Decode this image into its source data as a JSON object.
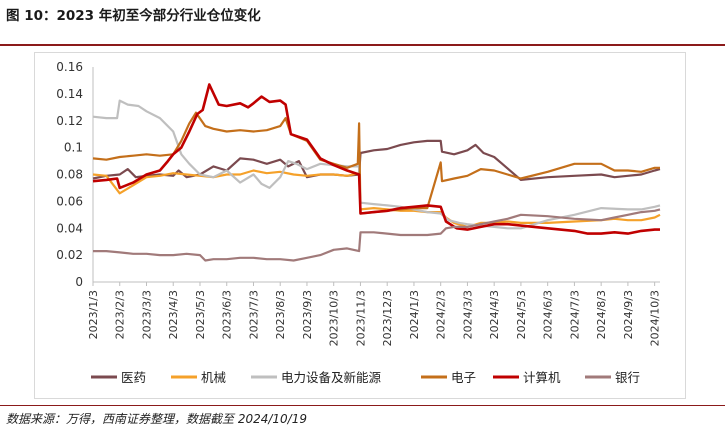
{
  "header": {
    "title": "图 10：2023 年初至今部分行业仓位变化"
  },
  "footer": {
    "source": "数据来源：万得，西南证券整理，数据截至 2024/10/19"
  },
  "chart_data": {
    "type": "line",
    "x": [
      "2023/1/3",
      "2023/2/3",
      "2023/3/3",
      "2023/4/3",
      "2023/5/3",
      "2023/6/3",
      "2023/7/3",
      "2023/8/3",
      "2023/9/3",
      "2023/10/3",
      "2023/11/3",
      "2023/12/3",
      "2024/1/3",
      "2024/2/3",
      "2024/3/3",
      "2024/4/3",
      "2024/5/3",
      "2024/6/3",
      "2024/7/3",
      "2024/8/3",
      "2024/9/3",
      "2024/10/3"
    ],
    "ylim": [
      0,
      0.16
    ],
    "yticks": [
      0,
      0.02,
      0.04,
      0.06,
      0.08,
      0.1,
      0.12,
      0.14,
      0.16
    ],
    "legend_position": "bottom",
    "grid": false,
    "series": [
      {
        "name": "医药",
        "color": "#7b4a4f",
        "points": [
          [
            0,
            0.077
          ],
          [
            0.5,
            0.079
          ],
          [
            1,
            0.08
          ],
          [
            1.3,
            0.084
          ],
          [
            1.6,
            0.078
          ],
          [
            2,
            0.079
          ],
          [
            2.5,
            0.08
          ],
          [
            3,
            0.079
          ],
          [
            3.2,
            0.083
          ],
          [
            3.5,
            0.078
          ],
          [
            4,
            0.08
          ],
          [
            4.5,
            0.086
          ],
          [
            5,
            0.083
          ],
          [
            5.5,
            0.092
          ],
          [
            6,
            0.091
          ],
          [
            6.5,
            0.088
          ],
          [
            7,
            0.091
          ],
          [
            7.3,
            0.086
          ],
          [
            7.7,
            0.09
          ],
          [
            8,
            0.078
          ],
          [
            8.5,
            0.08
          ],
          [
            9,
            0.08
          ],
          [
            9.5,
            0.079
          ],
          [
            9.95,
            0.08
          ],
          [
            10,
            0.096
          ],
          [
            10.5,
            0.098
          ],
          [
            11,
            0.099
          ],
          [
            11.5,
            0.102
          ],
          [
            12,
            0.104
          ],
          [
            12.5,
            0.105
          ],
          [
            13,
            0.105
          ],
          [
            13.05,
            0.097
          ],
          [
            13.5,
            0.095
          ],
          [
            14,
            0.098
          ],
          [
            14.3,
            0.102
          ],
          [
            14.6,
            0.096
          ],
          [
            15,
            0.093
          ],
          [
            15.3,
            0.088
          ],
          [
            16,
            0.076
          ],
          [
            17,
            0.078
          ],
          [
            18,
            0.079
          ],
          [
            19,
            0.08
          ],
          [
            19.5,
            0.078
          ],
          [
            20,
            0.079
          ],
          [
            20.5,
            0.08
          ],
          [
            21,
            0.083
          ],
          [
            21.2,
            0.084
          ]
        ]
      },
      {
        "name": "机械",
        "color": "#f5a12a",
        "points": [
          [
            0,
            0.08
          ],
          [
            0.5,
            0.079
          ],
          [
            1,
            0.066
          ],
          [
            1.5,
            0.072
          ],
          [
            2,
            0.078
          ],
          [
            2.5,
            0.079
          ],
          [
            3,
            0.081
          ],
          [
            3.5,
            0.08
          ],
          [
            4,
            0.079
          ],
          [
            4.5,
            0.078
          ],
          [
            5,
            0.08
          ],
          [
            5.5,
            0.08
          ],
          [
            6,
            0.083
          ],
          [
            6.5,
            0.081
          ],
          [
            7,
            0.082
          ],
          [
            7.5,
            0.08
          ],
          [
            8,
            0.079
          ],
          [
            8.5,
            0.08
          ],
          [
            9,
            0.08
          ],
          [
            9.5,
            0.079
          ],
          [
            9.95,
            0.081
          ],
          [
            10,
            0.054
          ],
          [
            10.5,
            0.055
          ],
          [
            11,
            0.054
          ],
          [
            11.5,
            0.053
          ],
          [
            12,
            0.053
          ],
          [
            12.5,
            0.052
          ],
          [
            13,
            0.052
          ],
          [
            13.2,
            0.048
          ],
          [
            13.5,
            0.044
          ],
          [
            14,
            0.041
          ],
          [
            14.5,
            0.044
          ],
          [
            15,
            0.044
          ],
          [
            15.5,
            0.045
          ],
          [
            16,
            0.044
          ],
          [
            17,
            0.044
          ],
          [
            18,
            0.045
          ],
          [
            19,
            0.046
          ],
          [
            19.5,
            0.047
          ],
          [
            20,
            0.046
          ],
          [
            20.5,
            0.046
          ],
          [
            21,
            0.048
          ],
          [
            21.2,
            0.05
          ]
        ]
      },
      {
        "name": "电力设备及新能源",
        "color": "#bfbfbf",
        "points": [
          [
            0,
            0.123
          ],
          [
            0.5,
            0.122
          ],
          [
            0.9,
            0.122
          ],
          [
            1,
            0.135
          ],
          [
            1.3,
            0.132
          ],
          [
            1.7,
            0.131
          ],
          [
            2,
            0.127
          ],
          [
            2.5,
            0.122
          ],
          [
            3,
            0.112
          ],
          [
            3.3,
            0.095
          ],
          [
            3.6,
            0.088
          ],
          [
            4,
            0.08
          ],
          [
            4.5,
            0.078
          ],
          [
            5,
            0.083
          ],
          [
            5.5,
            0.074
          ],
          [
            6,
            0.08
          ],
          [
            6.3,
            0.073
          ],
          [
            6.6,
            0.07
          ],
          [
            7,
            0.078
          ],
          [
            7.3,
            0.09
          ],
          [
            7.6,
            0.088
          ],
          [
            8,
            0.084
          ],
          [
            8.5,
            0.088
          ],
          [
            9,
            0.087
          ],
          [
            9.5,
            0.086
          ],
          [
            9.95,
            0.086
          ],
          [
            10,
            0.059
          ],
          [
            10.5,
            0.058
          ],
          [
            11,
            0.057
          ],
          [
            11.5,
            0.056
          ],
          [
            12,
            0.054
          ],
          [
            12.5,
            0.052
          ],
          [
            13,
            0.051
          ],
          [
            13.3,
            0.046
          ],
          [
            13.7,
            0.044
          ],
          [
            14,
            0.043
          ],
          [
            14.5,
            0.042
          ],
          [
            15,
            0.041
          ],
          [
            15.5,
            0.04
          ],
          [
            16,
            0.04
          ],
          [
            17,
            0.046
          ],
          [
            18,
            0.05
          ],
          [
            19,
            0.055
          ],
          [
            20,
            0.054
          ],
          [
            20.5,
            0.054
          ],
          [
            21,
            0.056
          ],
          [
            21.2,
            0.057
          ]
        ]
      },
      {
        "name": "电子",
        "color": "#c46f1a",
        "points": [
          [
            0,
            0.092
          ],
          [
            0.5,
            0.091
          ],
          [
            1,
            0.093
          ],
          [
            1.5,
            0.094
          ],
          [
            2,
            0.095
          ],
          [
            2.5,
            0.094
          ],
          [
            3,
            0.095
          ],
          [
            3.3,
            0.105
          ],
          [
            3.6,
            0.118
          ],
          [
            3.85,
            0.126
          ],
          [
            4.2,
            0.116
          ],
          [
            4.5,
            0.114
          ],
          [
            5,
            0.112
          ],
          [
            5.5,
            0.113
          ],
          [
            6,
            0.112
          ],
          [
            6.5,
            0.113
          ],
          [
            7,
            0.116
          ],
          [
            7.2,
            0.122
          ],
          [
            7.4,
            0.11
          ],
          [
            8,
            0.105
          ],
          [
            8.5,
            0.091
          ],
          [
            9,
            0.088
          ],
          [
            9.5,
            0.085
          ],
          [
            9.9,
            0.088
          ],
          [
            9.95,
            0.118
          ],
          [
            10,
            0.051
          ],
          [
            10.5,
            0.052
          ],
          [
            11,
            0.053
          ],
          [
            11.5,
            0.054
          ],
          [
            12,
            0.055
          ],
          [
            12.5,
            0.055
          ],
          [
            13,
            0.089
          ],
          [
            13.05,
            0.075
          ],
          [
            13.5,
            0.077
          ],
          [
            14,
            0.079
          ],
          [
            14.5,
            0.084
          ],
          [
            15,
            0.083
          ],
          [
            15.5,
            0.08
          ],
          [
            16,
            0.077
          ],
          [
            17,
            0.082
          ],
          [
            18,
            0.088
          ],
          [
            19,
            0.088
          ],
          [
            19.5,
            0.083
          ],
          [
            20,
            0.083
          ],
          [
            20.5,
            0.082
          ],
          [
            21,
            0.085
          ],
          [
            21.2,
            0.085
          ]
        ]
      },
      {
        "name": "计算机",
        "color": "#c00000",
        "points": [
          [
            0,
            0.075
          ],
          [
            0.5,
            0.076
          ],
          [
            0.9,
            0.077
          ],
          [
            1,
            0.07
          ],
          [
            1.5,
            0.074
          ],
          [
            2,
            0.08
          ],
          [
            2.5,
            0.083
          ],
          [
            2.8,
            0.09
          ],
          [
            3,
            0.095
          ],
          [
            3.3,
            0.1
          ],
          [
            3.6,
            0.112
          ],
          [
            3.9,
            0.125
          ],
          [
            4.1,
            0.128
          ],
          [
            4.35,
            0.147
          ],
          [
            4.7,
            0.132
          ],
          [
            5,
            0.131
          ],
          [
            5.5,
            0.133
          ],
          [
            5.8,
            0.13
          ],
          [
            6,
            0.133
          ],
          [
            6.3,
            0.138
          ],
          [
            6.6,
            0.134
          ],
          [
            7,
            0.135
          ],
          [
            7.2,
            0.132
          ],
          [
            7.4,
            0.11
          ],
          [
            8,
            0.106
          ],
          [
            8.5,
            0.092
          ],
          [
            9,
            0.087
          ],
          [
            9.5,
            0.083
          ],
          [
            9.95,
            0.08
          ],
          [
            10,
            0.051
          ],
          [
            10.5,
            0.052
          ],
          [
            11,
            0.053
          ],
          [
            11.5,
            0.055
          ],
          [
            12,
            0.056
          ],
          [
            12.5,
            0.057
          ],
          [
            13,
            0.056
          ],
          [
            13.2,
            0.045
          ],
          [
            13.6,
            0.04
          ],
          [
            14,
            0.039
          ],
          [
            14.5,
            0.041
          ],
          [
            15,
            0.043
          ],
          [
            15.5,
            0.043
          ],
          [
            16,
            0.042
          ],
          [
            17,
            0.04
          ],
          [
            18,
            0.038
          ],
          [
            18.5,
            0.036
          ],
          [
            19,
            0.036
          ],
          [
            19.5,
            0.037
          ],
          [
            20,
            0.036
          ],
          [
            20.5,
            0.038
          ],
          [
            21,
            0.039
          ],
          [
            21.2,
            0.039
          ]
        ]
      },
      {
        "name": "银行",
        "color": "#a17a7a",
        "points": [
          [
            0,
            0.023
          ],
          [
            0.5,
            0.023
          ],
          [
            1,
            0.022
          ],
          [
            1.5,
            0.021
          ],
          [
            2,
            0.021
          ],
          [
            2.5,
            0.02
          ],
          [
            3,
            0.02
          ],
          [
            3.5,
            0.021
          ],
          [
            4,
            0.02
          ],
          [
            4.2,
            0.016
          ],
          [
            4.5,
            0.017
          ],
          [
            5,
            0.017
          ],
          [
            5.5,
            0.018
          ],
          [
            6,
            0.018
          ],
          [
            6.5,
            0.017
          ],
          [
            7,
            0.017
          ],
          [
            7.5,
            0.016
          ],
          [
            8,
            0.018
          ],
          [
            8.5,
            0.02
          ],
          [
            9,
            0.024
          ],
          [
            9.5,
            0.025
          ],
          [
            9.95,
            0.023
          ],
          [
            10,
            0.037
          ],
          [
            10.5,
            0.037
          ],
          [
            11,
            0.036
          ],
          [
            11.5,
            0.035
          ],
          [
            12,
            0.035
          ],
          [
            12.5,
            0.035
          ],
          [
            13,
            0.036
          ],
          [
            13.2,
            0.04
          ],
          [
            13.5,
            0.041
          ],
          [
            14,
            0.041
          ],
          [
            14.5,
            0.043
          ],
          [
            15,
            0.045
          ],
          [
            15.5,
            0.047
          ],
          [
            16,
            0.05
          ],
          [
            17,
            0.049
          ],
          [
            18,
            0.047
          ],
          [
            19,
            0.046
          ],
          [
            19.5,
            0.048
          ],
          [
            20,
            0.05
          ],
          [
            20.5,
            0.052
          ],
          [
            21,
            0.053
          ],
          [
            21.2,
            0.054
          ]
        ]
      }
    ]
  }
}
